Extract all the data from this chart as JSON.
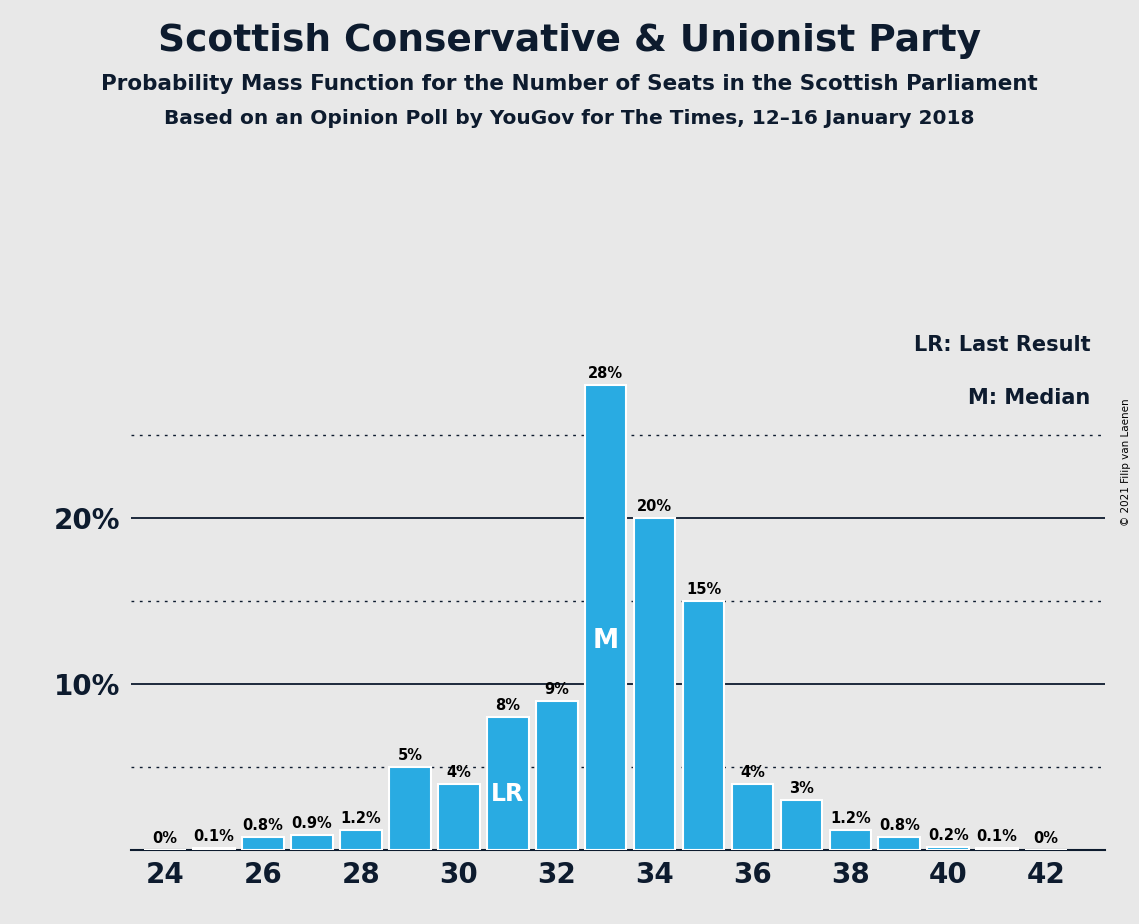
{
  "title": "Scottish Conservative & Unionist Party",
  "subtitle1": "Probability Mass Function for the Number of Seats in the Scottish Parliament",
  "subtitle2": "Based on an Opinion Poll by YouGov for The Times, 12–16 January 2018",
  "copyright": "© 2021 Filip van Laenen",
  "seats": [
    24,
    25,
    26,
    27,
    28,
    29,
    30,
    31,
    32,
    33,
    34,
    35,
    36,
    37,
    38,
    39,
    40,
    41,
    42
  ],
  "values": [
    0.0,
    0.1,
    0.8,
    0.9,
    1.2,
    5.0,
    4.0,
    8.0,
    9.0,
    28.0,
    20.0,
    15.0,
    4.0,
    3.0,
    1.2,
    0.8,
    0.2,
    0.1,
    0.0
  ],
  "labels": [
    "0%",
    "0.1%",
    "0.8%",
    "0.9%",
    "1.2%",
    "5%",
    "4%",
    "8%",
    "9%",
    "28%",
    "20%",
    "15%",
    "4%",
    "3%",
    "1.2%",
    "0.8%",
    "0.2%",
    "0.1%",
    "0%"
  ],
  "bar_color": "#29ABE2",
  "background_color": "#E8E8E8",
  "lr_seat": 31,
  "median_seat": 33,
  "solid_yticks": [
    10,
    20
  ],
  "dotted_yticks": [
    5,
    15,
    25
  ],
  "xticks": [
    24,
    26,
    28,
    30,
    32,
    34,
    36,
    38,
    40,
    42
  ],
  "title_color": "#0d1b2e",
  "legend_lr": "LR: Last Result",
  "legend_m": "M: Median"
}
